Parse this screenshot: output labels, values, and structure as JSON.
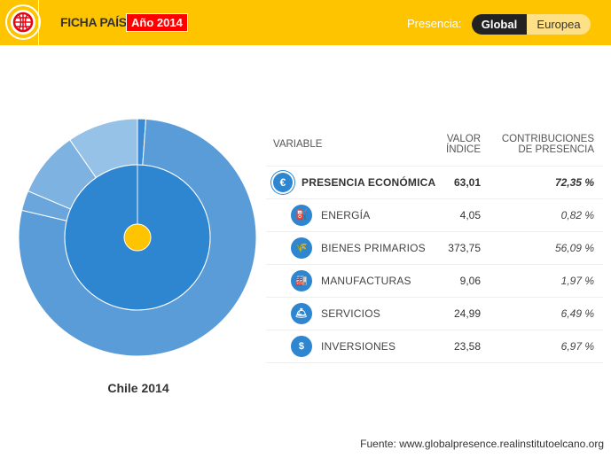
{
  "header": {
    "title": "FICHA PAÍS",
    "year_badge": "Año 2014",
    "presence_label": "Presencia:",
    "toggle": [
      "Global",
      "Europea"
    ],
    "colors": {
      "bar": "#fec400",
      "badge": "#ff0000"
    }
  },
  "chart_data": {
    "type": "sunburst",
    "title": "Chile 2014",
    "inner": {
      "name": "Presencia económica",
      "value": 72.35,
      "color": "#2e86d0"
    },
    "outer": [
      {
        "name": "Energía",
        "value": 0.82,
        "color": "#3a8bd3"
      },
      {
        "name": "Bienes primarios",
        "value": 56.09,
        "color": "#5a9cd8"
      },
      {
        "name": "Manufacturas",
        "value": 1.97,
        "color": "#6aa6dc"
      },
      {
        "name": "Servicios",
        "value": 6.49,
        "color": "#7db2e1"
      },
      {
        "name": "Inversiones",
        "value": 6.97,
        "color": "#96c2e7"
      }
    ]
  },
  "table": {
    "headers": [
      "VARIABLE",
      "VALOR\nÍNDICE",
      "CONTRIBUCIONES\nDE PRESENCIA"
    ],
    "main": {
      "label": "PRESENCIA ECONÓMICA",
      "icon": "euro-icon",
      "value": "63,01",
      "contrib": "72,35 %"
    },
    "rows": [
      {
        "label": "ENERGÍA",
        "icon": "oil-rig-icon",
        "value": "4,05",
        "contrib": "0,82 %"
      },
      {
        "label": "BIENES PRIMARIOS",
        "icon": "wheat-icon",
        "value": "373,75",
        "contrib": "56,09 %"
      },
      {
        "label": "MANUFACTURAS",
        "icon": "factory-icon",
        "value": "9,06",
        "contrib": "1,97 %"
      },
      {
        "label": "SERVICIOS",
        "icon": "service-desk-icon",
        "value": "24,99",
        "contrib": "6,49 %"
      },
      {
        "label": "INVERSIONES",
        "icon": "investment-icon",
        "value": "23,58",
        "contrib": "6,97 %"
      }
    ]
  },
  "source": "Fuente: www.globalpresence.realinstitutoelcano.org"
}
